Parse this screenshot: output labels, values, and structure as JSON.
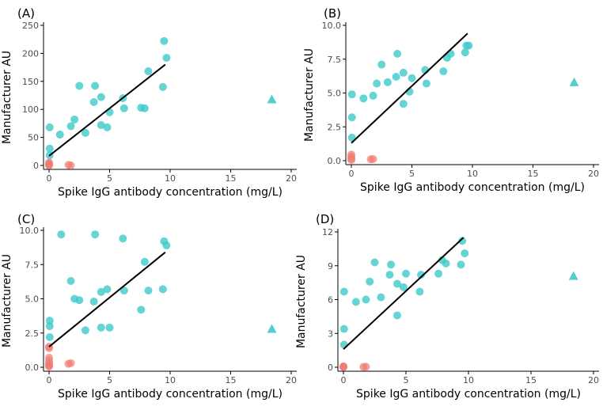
{
  "chart_data": [
    {
      "type": "scatter",
      "panel_label": "(A)",
      "xlabel": "Spike IgG antibody concentration (mg/L)",
      "ylabel": "Manufacturer AU",
      "xlim": [
        0,
        20
      ],
      "ylim": [
        0,
        250
      ],
      "xticks": [
        "0",
        "5",
        "10",
        "15",
        "20"
      ],
      "yticks": [
        "0",
        "50",
        "100",
        "150",
        "200",
        "250"
      ],
      "colors": {
        "positive": "#3ec9c9",
        "negative": "#f07a70",
        "outlier": "#3ec9c9"
      },
      "series": [
        {
          "points": [
            [
              0.05,
              68
            ],
            [
              0.05,
              30
            ],
            [
              0.05,
              18
            ],
            [
              0.9,
              55
            ],
            [
              1.8,
              70
            ],
            [
              2.1,
              82
            ],
            [
              2.5,
              142
            ],
            [
              3.0,
              58
            ],
            [
              3.7,
              113
            ],
            [
              3.8,
              142
            ],
            [
              4.3,
              122
            ],
            [
              4.3,
              72
            ],
            [
              4.8,
              68
            ],
            [
              5.0,
              95
            ],
            [
              6.1,
              120
            ],
            [
              6.2,
              102
            ],
            [
              7.6,
              103
            ],
            [
              7.9,
              102
            ],
            [
              8.2,
              168
            ],
            [
              9.4,
              140
            ],
            [
              9.5,
              222
            ],
            [
              9.7,
              192
            ]
          ]
        },
        {
          "points": [
            [
              0,
              0
            ],
            [
              0,
              1
            ],
            [
              0,
              3
            ],
            [
              0,
              5
            ],
            [
              1.6,
              1
            ],
            [
              1.8,
              0
            ]
          ]
        },
        {
          "points": [
            [
              18.4,
              118
            ]
          ]
        }
      ],
      "fit_line": [
        [
          0,
          17
        ],
        [
          9.6,
          180
        ]
      ]
    },
    {
      "type": "scatter",
      "panel_label": "(B)",
      "xlabel": "Spike IgG antibody concentration (mg/L)",
      "ylabel": "Manufacturer AU",
      "xlim": [
        0,
        20
      ],
      "ylim": [
        0,
        10
      ],
      "xticks": [
        "0",
        "5",
        "10",
        "15",
        "20"
      ],
      "yticks": [
        "0.0",
        "2.5",
        "5.0",
        "7.5",
        "10.0"
      ],
      "colors": {
        "positive": "#3ec9c9",
        "negative": "#f07a70",
        "outlier": "#3ec9c9"
      },
      "series": [
        {
          "points": [
            [
              0.05,
              4.9
            ],
            [
              0.05,
              3.2
            ],
            [
              0.05,
              1.7
            ],
            [
              1.0,
              4.6
            ],
            [
              1.8,
              4.8
            ],
            [
              2.1,
              5.7
            ],
            [
              2.5,
              7.1
            ],
            [
              3.0,
              5.8
            ],
            [
              3.7,
              6.2
            ],
            [
              3.8,
              7.9
            ],
            [
              4.3,
              6.5
            ],
            [
              4.3,
              4.2
            ],
            [
              4.8,
              5.1
            ],
            [
              5.0,
              6.1
            ],
            [
              6.1,
              6.7
            ],
            [
              6.2,
              5.7
            ],
            [
              7.6,
              6.6
            ],
            [
              7.9,
              7.6
            ],
            [
              8.2,
              7.9
            ],
            [
              9.4,
              8.0
            ],
            [
              9.5,
              8.5
            ],
            [
              9.7,
              8.5
            ]
          ]
        },
        {
          "points": [
            [
              0,
              0.05
            ],
            [
              0,
              0.15
            ],
            [
              0,
              0.3
            ],
            [
              0,
              0.45
            ],
            [
              1.6,
              0.1
            ],
            [
              1.8,
              0.12
            ]
          ]
        },
        {
          "points": [
            [
              18.4,
              5.8
            ]
          ]
        }
      ],
      "fit_line": [
        [
          0,
          1.3
        ],
        [
          9.6,
          9.4
        ]
      ]
    },
    {
      "type": "scatter",
      "panel_label": "(C)",
      "xlabel": "Spike IgG antibody concentration (mg/L)",
      "ylabel": "Manufacturer AU",
      "xlim": [
        0,
        20
      ],
      "ylim": [
        0,
        10
      ],
      "xticks": [
        "0",
        "5",
        "10",
        "15",
        "20"
      ],
      "yticks": [
        "0.0",
        "2.5",
        "5.0",
        "7.5",
        "10.0"
      ],
      "colors": {
        "positive": "#3ec9c9",
        "negative": "#f07a70",
        "outlier": "#3ec9c9"
      },
      "series": [
        {
          "points": [
            [
              0.05,
              3.4
            ],
            [
              0.05,
              3.0
            ],
            [
              0.05,
              2.2
            ],
            [
              1.0,
              9.7
            ],
            [
              1.8,
              6.3
            ],
            [
              2.1,
              5.0
            ],
            [
              2.5,
              4.9
            ],
            [
              3.0,
              2.7
            ],
            [
              3.7,
              4.8
            ],
            [
              3.8,
              9.7
            ],
            [
              4.3,
              5.5
            ],
            [
              4.3,
              2.9
            ],
            [
              4.8,
              5.7
            ],
            [
              5.0,
              2.9
            ],
            [
              6.1,
              9.4
            ],
            [
              6.2,
              5.6
            ],
            [
              7.6,
              4.2
            ],
            [
              7.9,
              7.7
            ],
            [
              8.2,
              5.6
            ],
            [
              9.4,
              5.7
            ],
            [
              9.5,
              9.2
            ],
            [
              9.7,
              8.9
            ]
          ]
        },
        {
          "points": [
            [
              0,
              1.5
            ],
            [
              0,
              1.4
            ],
            [
              0,
              0.7
            ],
            [
              0,
              0.5
            ],
            [
              0,
              0.3
            ],
            [
              0,
              0.2
            ],
            [
              0,
              0.1
            ],
            [
              0,
              0.05
            ],
            [
              1.6,
              0.25
            ],
            [
              1.8,
              0.3
            ]
          ]
        },
        {
          "points": [
            [
              18.4,
              2.8
            ]
          ]
        }
      ],
      "fit_line": [
        [
          0,
          1.5
        ],
        [
          9.6,
          8.4
        ]
      ]
    },
    {
      "type": "scatter",
      "panel_label": "(D)",
      "xlabel": "Spike IgG antibody concentration (mg/L)",
      "ylabel": "Manufacturer AU",
      "xlim": [
        0,
        20
      ],
      "ylim": [
        0,
        12
      ],
      "xticks": [
        "0",
        "5",
        "10",
        "15",
        "20"
      ],
      "yticks": [
        "0",
        "3",
        "6",
        "9",
        "12"
      ],
      "colors": {
        "positive": "#3ec9c9",
        "negative": "#f07a70",
        "outlier": "#3ec9c9"
      },
      "series": [
        {
          "points": [
            [
              0.05,
              6.7
            ],
            [
              0.05,
              3.4
            ],
            [
              0.05,
              2.0
            ],
            [
              1.0,
              5.8
            ],
            [
              1.8,
              6.0
            ],
            [
              2.1,
              7.6
            ],
            [
              2.5,
              9.3
            ],
            [
              3.0,
              6.2
            ],
            [
              3.7,
              8.2
            ],
            [
              3.8,
              9.1
            ],
            [
              4.3,
              7.4
            ],
            [
              4.3,
              4.6
            ],
            [
              4.8,
              7.1
            ],
            [
              5.0,
              8.3
            ],
            [
              6.1,
              6.7
            ],
            [
              6.2,
              8.2
            ],
            [
              7.6,
              8.3
            ],
            [
              7.9,
              9.5
            ],
            [
              8.2,
              9.2
            ],
            [
              9.4,
              9.1
            ],
            [
              9.5,
              11.2
            ],
            [
              9.7,
              10.1
            ]
          ]
        },
        {
          "points": [
            [
              0,
              0.02
            ],
            [
              0,
              0.05
            ],
            [
              0,
              0.08
            ],
            [
              1.6,
              0.03
            ],
            [
              1.8,
              0.05
            ]
          ]
        },
        {
          "points": [
            [
              18.4,
              8.1
            ]
          ]
        }
      ],
      "fit_line": [
        [
          0,
          1.6
        ],
        [
          9.6,
          11.5
        ]
      ]
    }
  ]
}
